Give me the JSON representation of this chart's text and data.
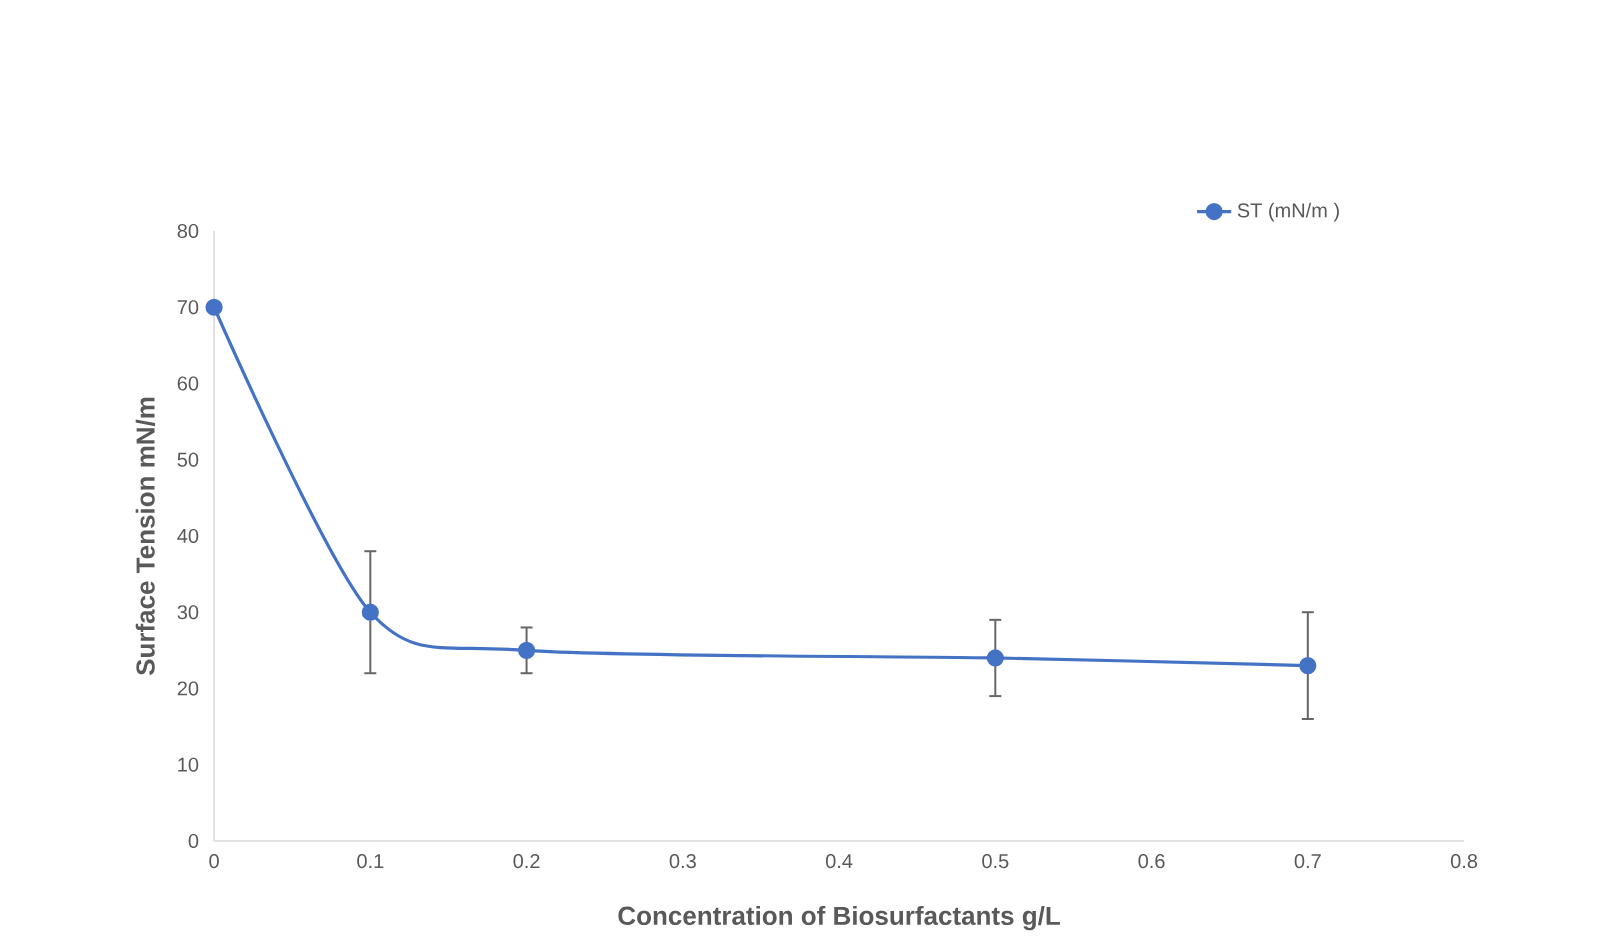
{
  "chart_data": {
    "type": "line",
    "xlabel": "Concentration of Biosurfactants g/L",
    "ylabel": "Surface Tension mN/m",
    "x": [
      0,
      0.1,
      0.2,
      0.5,
      0.7
    ],
    "series": [
      {
        "name": "ST (mN/m )",
        "color": "#4472c4",
        "values": [
          70,
          30,
          25,
          24,
          23
        ],
        "errors": [
          null,
          [
            22,
            38
          ],
          [
            22,
            28
          ],
          [
            19,
            29
          ],
          [
            16,
            30
          ]
        ]
      }
    ],
    "xlim": [
      0,
      0.8
    ],
    "xticks": [
      0,
      0.1,
      0.2,
      0.3,
      0.4,
      0.5,
      0.6,
      0.7,
      0.8
    ],
    "ylim": [
      0,
      80
    ],
    "yticks": [
      0,
      10,
      20,
      30,
      40,
      50,
      60,
      70,
      80
    ],
    "legend": "top right",
    "marker": "circle"
  }
}
